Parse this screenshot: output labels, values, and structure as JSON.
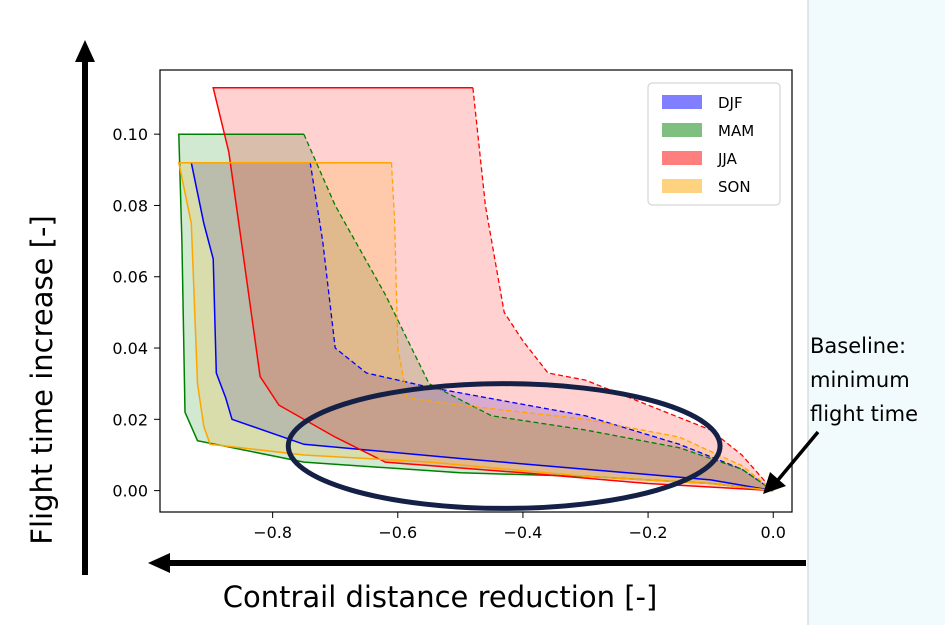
{
  "page": {
    "background": "#f1fbfd",
    "y_axis_label": "Flight time increase [-]",
    "x_axis_label": "Contrail distance reduction [-]",
    "annotation_lines": [
      "Baseline:",
      "minimum",
      "flight time"
    ]
  },
  "chart_data": {
    "type": "area",
    "title": "",
    "xlabel": "Contrail distance reduction [-]",
    "ylabel": "Flight time increase [-]",
    "xlim": [
      -0.98,
      0.03
    ],
    "ylim": [
      -0.006,
      0.118
    ],
    "xticks": [
      -0.8,
      -0.6,
      -0.4,
      -0.2,
      0.0
    ],
    "yticks": [
      0.0,
      0.02,
      0.04,
      0.06,
      0.08,
      0.1
    ],
    "xtick_labels": [
      "−0.8",
      "−0.6",
      "−0.4",
      "−0.2",
      "0.0"
    ],
    "ytick_labels": [
      "0.00",
      "0.02",
      "0.04",
      "0.06",
      "0.08",
      "0.10"
    ],
    "grid": false,
    "legend_position": "upper right",
    "series": [
      {
        "name": "DJF",
        "color": "#0000ff",
        "solid": [
          [
            -0.74,
            0.092
          ],
          [
            -0.93,
            0.092
          ],
          [
            -0.91,
            0.075
          ],
          [
            -0.895,
            0.065
          ],
          [
            -0.89,
            0.033
          ],
          [
            -0.875,
            0.026
          ],
          [
            -0.865,
            0.02
          ],
          [
            -0.75,
            0.013
          ],
          [
            -0.5,
            0.009
          ],
          [
            -0.3,
            0.006
          ],
          [
            -0.1,
            0.003
          ],
          [
            0.0,
            0.0
          ]
        ],
        "dashed": [
          [
            -0.74,
            0.092
          ],
          [
            -0.72,
            0.07
          ],
          [
            -0.7,
            0.04
          ],
          [
            -0.65,
            0.033
          ],
          [
            -0.55,
            0.029
          ],
          [
            -0.3,
            0.021
          ],
          [
            -0.15,
            0.013
          ],
          [
            -0.05,
            0.006
          ],
          [
            0.0,
            0.0
          ]
        ]
      },
      {
        "name": "MAM",
        "color": "#008000",
        "solid": [
          [
            -0.75,
            0.1
          ],
          [
            -0.95,
            0.1
          ],
          [
            -0.945,
            0.07
          ],
          [
            -0.94,
            0.022
          ],
          [
            -0.92,
            0.014
          ],
          [
            -0.75,
            0.008
          ],
          [
            -0.5,
            0.005
          ],
          [
            -0.3,
            0.004
          ],
          [
            -0.1,
            0.002
          ],
          [
            0.0,
            0.0
          ]
        ],
        "dashed": [
          [
            -0.75,
            0.1
          ],
          [
            -0.7,
            0.08
          ],
          [
            -0.62,
            0.055
          ],
          [
            -0.55,
            0.03
          ],
          [
            -0.45,
            0.021
          ],
          [
            -0.3,
            0.017
          ],
          [
            -0.15,
            0.012
          ],
          [
            -0.05,
            0.006
          ],
          [
            0.0,
            0.0
          ]
        ]
      },
      {
        "name": "JJA",
        "color": "#ff0000",
        "solid": [
          [
            -0.48,
            0.113
          ],
          [
            -0.895,
            0.113
          ],
          [
            -0.87,
            0.095
          ],
          [
            -0.85,
            0.07
          ],
          [
            -0.82,
            0.032
          ],
          [
            -0.79,
            0.024
          ],
          [
            -0.7,
            0.015
          ],
          [
            -0.62,
            0.008
          ],
          [
            -0.4,
            0.005
          ],
          [
            -0.2,
            0.002
          ],
          [
            0.0,
            0.0
          ]
        ],
        "dashed": [
          [
            -0.48,
            0.113
          ],
          [
            -0.46,
            0.08
          ],
          [
            -0.43,
            0.05
          ],
          [
            -0.4,
            0.042
          ],
          [
            -0.36,
            0.033
          ],
          [
            -0.3,
            0.031
          ],
          [
            -0.2,
            0.024
          ],
          [
            -0.1,
            0.017
          ],
          [
            -0.05,
            0.01
          ],
          [
            0.0,
            0.0
          ]
        ]
      },
      {
        "name": "SON",
        "color": "#ffa500",
        "solid": [
          [
            -0.61,
            0.092
          ],
          [
            -0.95,
            0.092
          ],
          [
            -0.93,
            0.075
          ],
          [
            -0.92,
            0.03
          ],
          [
            -0.91,
            0.018
          ],
          [
            -0.9,
            0.013
          ],
          [
            -0.75,
            0.01
          ],
          [
            -0.55,
            0.008
          ],
          [
            -0.3,
            0.004
          ],
          [
            -0.1,
            0.002
          ],
          [
            0.0,
            0.0
          ]
        ],
        "dashed": [
          [
            -0.61,
            0.092
          ],
          [
            -0.605,
            0.075
          ],
          [
            -0.6,
            0.04
          ],
          [
            -0.585,
            0.026
          ],
          [
            -0.5,
            0.024
          ],
          [
            -0.3,
            0.02
          ],
          [
            -0.15,
            0.015
          ],
          [
            -0.05,
            0.007
          ],
          [
            0.0,
            0.0
          ]
        ]
      }
    ],
    "highlight_ellipse": {
      "center": [
        -0.43,
        0.0125
      ],
      "rx_data": 0.345,
      "ry_data": 0.0175,
      "color": "#142046"
    }
  }
}
